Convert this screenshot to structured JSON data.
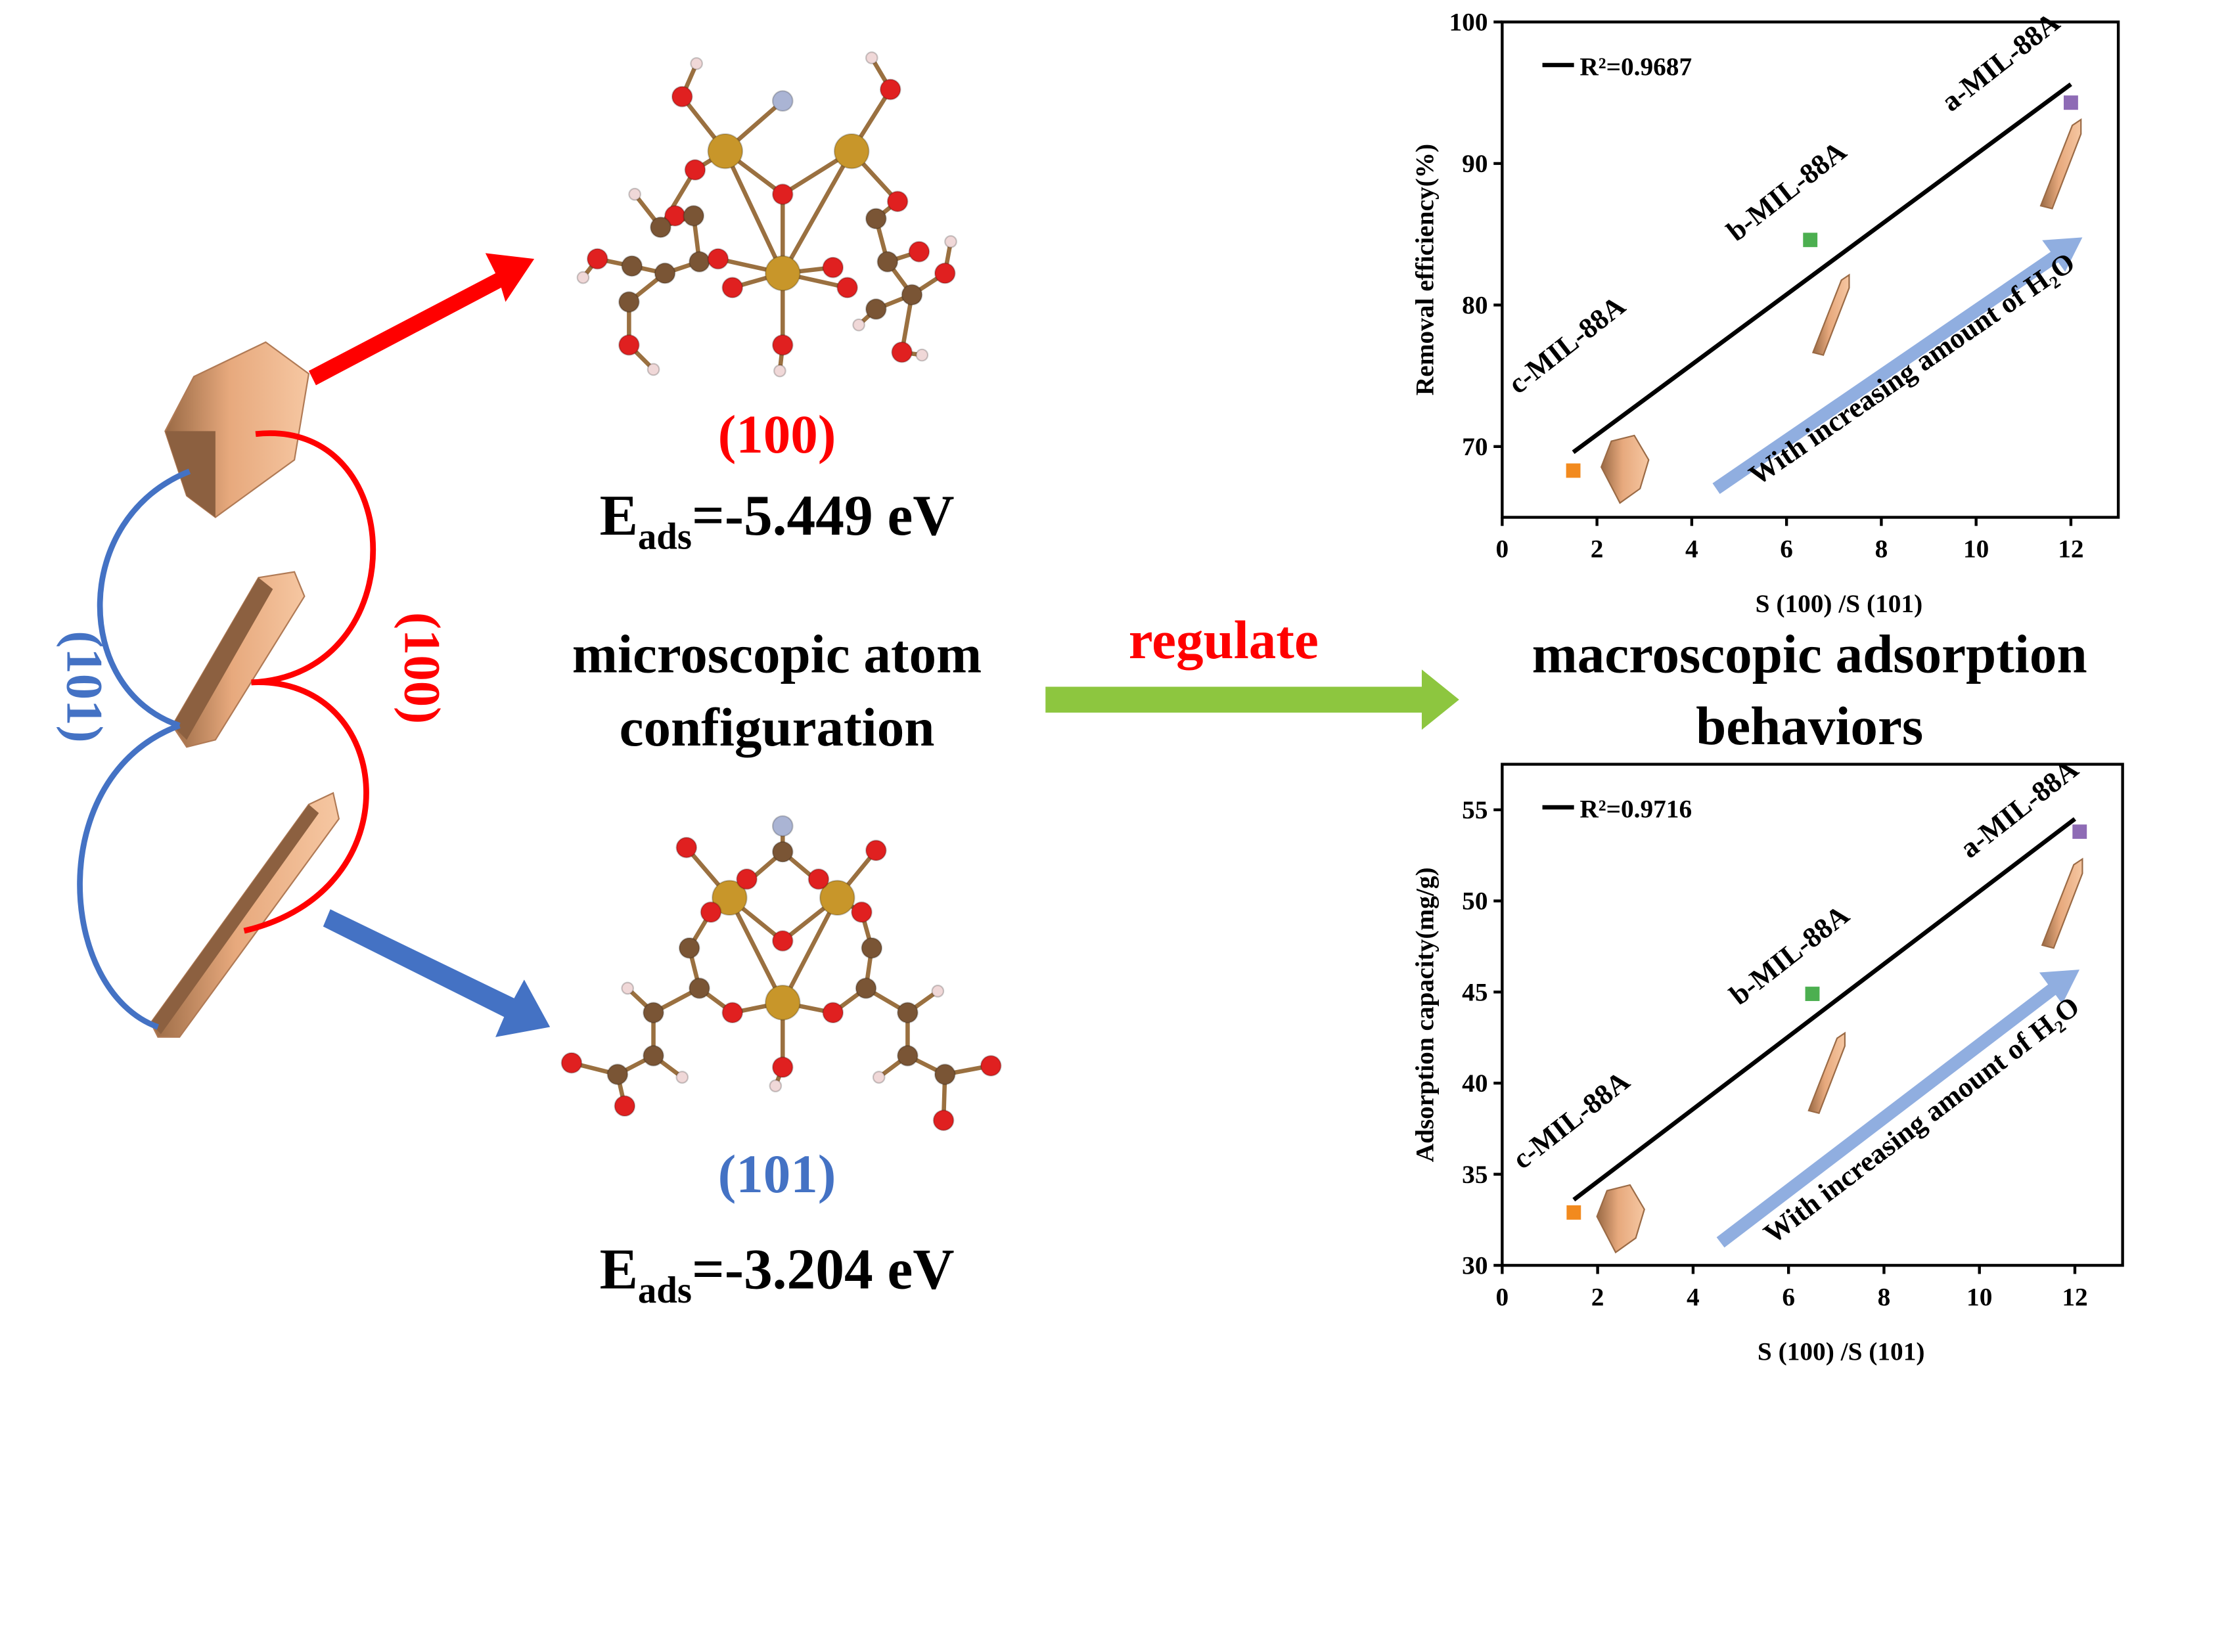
{
  "labels": {
    "face_101_left": "(101)",
    "face_100_left": "(100)",
    "top_face": "(100)",
    "top_energy": {
      "symbol": "E",
      "subscript": "ads",
      "value": "=-5.449 eV"
    },
    "bottom_face": "(101)",
    "bottom_energy": {
      "symbol": "E",
      "subscript": "ads",
      "value": "=-3.204 eV"
    },
    "micro_line1": "microscopic atom",
    "micro_line2": "configuration",
    "regulate": "regulate",
    "macro_line1": "macroscopic adsorption",
    "macro_line2": "behaviors"
  },
  "chart_data": [
    {
      "type": "scatter",
      "y_label": "Removal efficiency(%)",
      "x_label": "S (100) /S (101)",
      "xlim": [
        0,
        13
      ],
      "ylim": [
        65,
        100
      ],
      "xticks": [
        0,
        2,
        4,
        6,
        8,
        10,
        12
      ],
      "yticks": [
        70,
        80,
        90,
        100
      ],
      "series": [
        {
          "name": "R²=0.9687",
          "color": "#000000",
          "x": [
            1.5,
            12
          ],
          "values": [
            69.6,
            95.6
          ]
        }
      ],
      "points": {
        "x": [
          1.5,
          6.5,
          12
        ],
        "values": [
          68.3,
          84.6,
          94.3
        ],
        "colors": [
          "#f28a1e",
          "#4caf50",
          "#8e6bb5"
        ],
        "labels": [
          "c-MIL-88A",
          "b-MIL-88A",
          "a-MIL-88A"
        ]
      },
      "annotation": "With increasing amount of H₂O"
    },
    {
      "type": "scatter",
      "y_label": "Adsorption capacity(mg/g)",
      "x_label": "S (100) /S (101)",
      "xlim": [
        0,
        13
      ],
      "ylim": [
        30,
        57.5
      ],
      "xticks": [
        0,
        2,
        4,
        6,
        8,
        10,
        12
      ],
      "yticks": [
        30,
        35,
        40,
        45,
        50,
        55
      ],
      "series": [
        {
          "name": "R²=0.9716",
          "color": "#000000",
          "x": [
            1.5,
            12
          ],
          "values": [
            33.6,
            54.5
          ]
        }
      ],
      "points": {
        "x": [
          1.5,
          6.5,
          12.1
        ],
        "values": [
          32.9,
          44.9,
          53.8
        ],
        "colors": [
          "#f28a1e",
          "#4caf50",
          "#8e6bb5"
        ],
        "labels": [
          "c-MIL-88A",
          "b-MIL-88A",
          "a-MIL-88A"
        ]
      },
      "annotation": "With increasing amount of H₂O"
    }
  ]
}
